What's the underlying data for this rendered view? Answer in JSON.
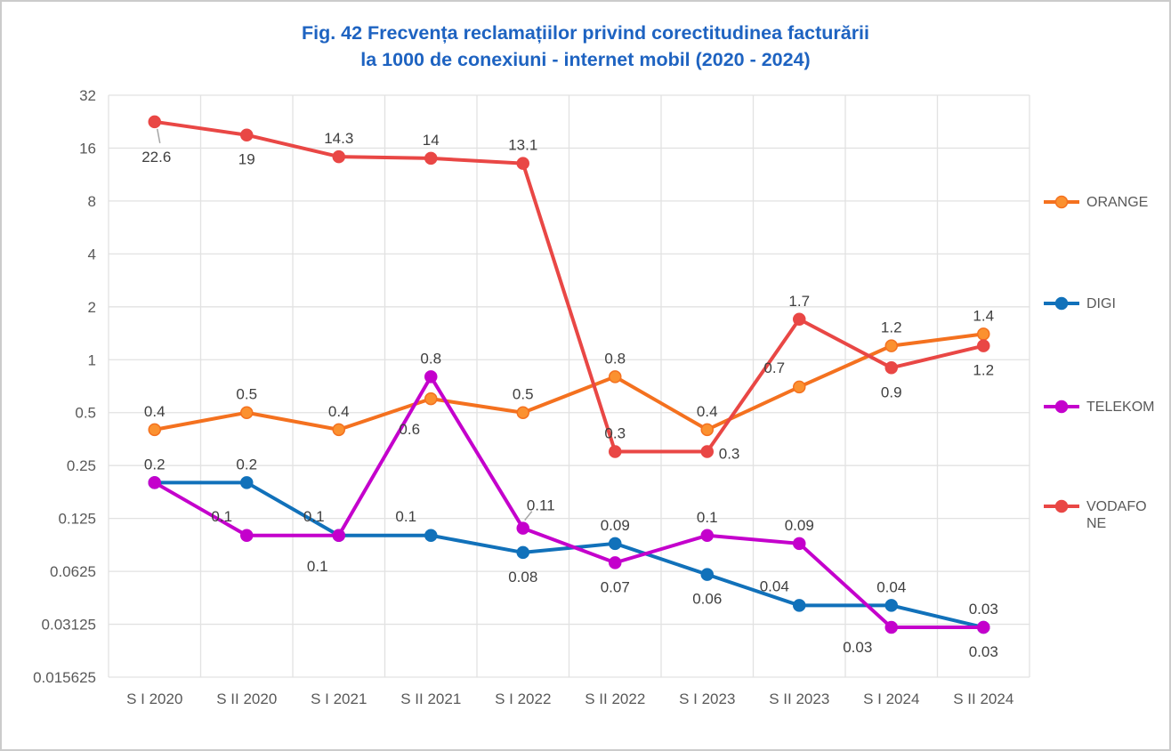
{
  "figure": {
    "title_line1": "Fig. 42 Frecvența reclamațiilor privind corectitudinea facturării",
    "title_line2": "la 1000 de conexiuni - internet mobil (2020 - 2024)",
    "title_color": "#1E63C1"
  },
  "chart_data": {
    "type": "line",
    "title": "Fig. 42 Frecvența reclamațiilor privind corectitudinea facturării la 1000 de conexiuni - internet mobil (2020 - 2024)",
    "categories": [
      "S I 2020",
      "S II 2020",
      "S I 2021",
      "S II 2021",
      "S I 2022",
      "S II 2022",
      "S I 2023",
      "S II 2023",
      "S I 2024",
      "S II 2024"
    ],
    "series": [
      {
        "name": "ORANGE",
        "color": "#F4711F",
        "marker_fill": "#FB9130",
        "values": [
          0.4,
          0.5,
          0.4,
          0.6,
          0.5,
          0.8,
          0.4,
          0.7,
          1.2,
          1.4
        ],
        "label_placements": [
          "above",
          "above",
          "above",
          "below-left",
          "above",
          "above",
          "above",
          "above-left",
          "above",
          "above"
        ]
      },
      {
        "name": "DIGI",
        "color": "#1171BA",
        "marker_fill": "#1171BA",
        "values": [
          0.2,
          0.2,
          0.1,
          0.1,
          0.08,
          0.09,
          0.06,
          0.04,
          0.04,
          0.03
        ],
        "label_placements": [
          "above",
          "above",
          "below-left",
          "above-left",
          "below",
          "above",
          "below",
          "above-left",
          "above",
          "above"
        ]
      },
      {
        "name": "TELEKOM",
        "color": "#C400CC",
        "marker_fill": "#C400CC",
        "values": [
          0.2,
          0.1,
          0.1,
          0.8,
          0.11,
          0.07,
          0.1,
          0.09,
          0.03,
          0.03
        ],
        "label_placements": [
          "hidden",
          "above-left",
          "above-left",
          "above",
          "leader-above-right",
          "below",
          "above",
          "above",
          "left-below",
          "below"
        ]
      },
      {
        "name": "VODAFONE",
        "color": "#E94745",
        "marker_fill": "#E94745",
        "values": [
          22.6,
          19,
          14.3,
          14,
          13.1,
          0.3,
          0.3,
          1.7,
          0.9,
          1.2
        ],
        "label_placements": [
          "leader-below",
          "below",
          "above",
          "above",
          "above",
          "above",
          "right",
          "above",
          "below",
          "below"
        ]
      }
    ],
    "y_axis": {
      "scale": "log2",
      "max": 32,
      "min": 0.015625,
      "ticks": [
        "32",
        "16",
        "8",
        "4",
        "2",
        "1",
        "0.5",
        "0.25",
        "0.125",
        "0.0625",
        "0.03125",
        "0.015625"
      ]
    },
    "grid": true,
    "legend_position": "right",
    "colors": {
      "axis_label": "#595959",
      "data_label": "#3F3F3F",
      "gridline": "#E2E2E2",
      "leader_line": "#A6A6A6",
      "legend_label": "#595959"
    }
  }
}
